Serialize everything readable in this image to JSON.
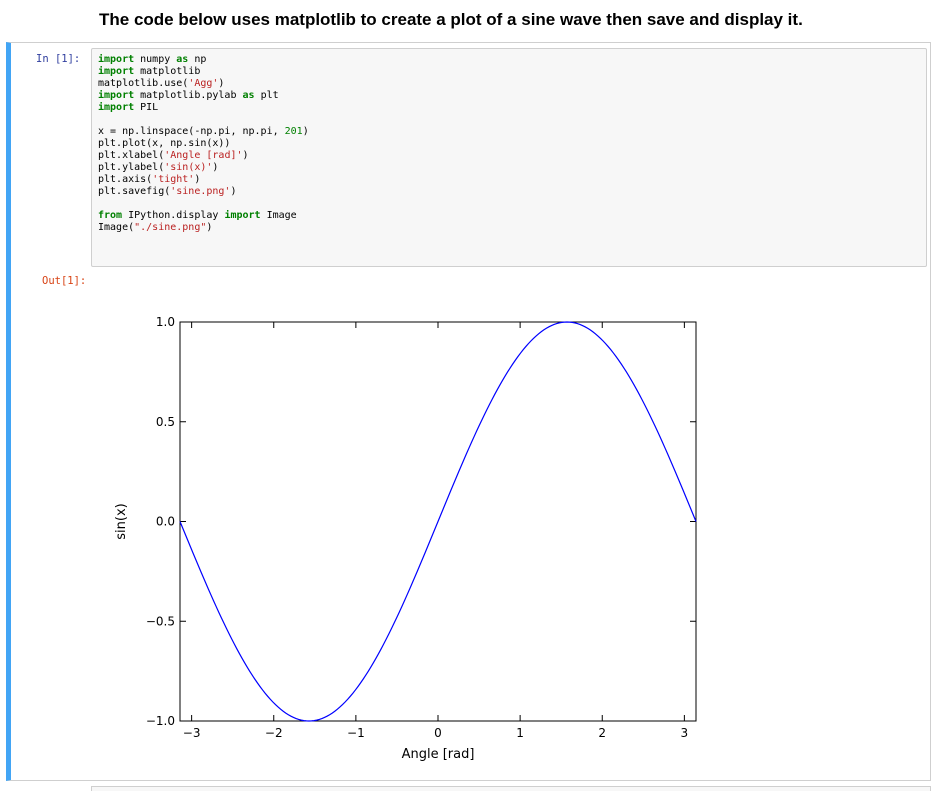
{
  "heading": "The code below uses matplotlib to create a plot of a sine wave then save and display it.",
  "cell": {
    "in_prompt": "In [1]:",
    "out_prompt": "Out[1]:",
    "code": {
      "l1a": "import",
      "l1b": " numpy ",
      "l1c": "as",
      "l1d": " np",
      "l2a": "import",
      "l2b": " matplotlib",
      "l3a": "matplotlib.use(",
      "l3b": "'Agg'",
      "l3c": ")",
      "l4a": "import",
      "l4b": " matplotlib.pylab ",
      "l4c": "as",
      "l4d": " plt",
      "l5a": "import",
      "l5b": " PIL",
      "l7a": "x = np.linspace(-np.pi, np.pi, ",
      "l7b": "201",
      "l7c": ")",
      "l8": "plt.plot(x, np.sin(x))",
      "l9a": "plt.xlabel(",
      "l9b": "'Angle [rad]'",
      "l9c": ")",
      "l10a": "plt.ylabel(",
      "l10b": "'sin(x)'",
      "l10c": ")",
      "l11a": "plt.axis(",
      "l11b": "'tight'",
      "l11c": ")",
      "l12a": "plt.savefig(",
      "l12b": "'sine.png'",
      "l12c": ")",
      "l14a": "from",
      "l14b": " IPython.display ",
      "l14c": "import",
      "l14d": " Image",
      "l15a": "Image(",
      "l15b": "\"./sine.png\"",
      "l15c": ")"
    }
  },
  "chart_data": {
    "type": "line",
    "xlabel": "Angle [rad]",
    "ylabel": "sin(x)",
    "xlim": [
      -3.14159,
      3.14159
    ],
    "ylim": [
      -1.0,
      1.0
    ],
    "x_ticks": [
      -3,
      -2,
      -1,
      0,
      1,
      2,
      3
    ],
    "x_tick_labels": [
      "−3",
      "−2",
      "−1",
      "0",
      "1",
      "2",
      "3"
    ],
    "y_ticks": [
      1.0,
      0.5,
      0.0,
      -0.5,
      -1.0
    ],
    "y_tick_labels": [
      "1.0",
      "0.5",
      "0.0",
      "−0.5",
      "−1.0"
    ],
    "grid": false,
    "series": [
      {
        "function": "y = sin(x)",
        "x": [
          -3.1416,
          -2.7489,
          -2.3562,
          -1.9635,
          -1.5708,
          -1.1781,
          -0.7854,
          -0.3927,
          0.0,
          0.3927,
          0.7854,
          1.1781,
          1.5708,
          1.9635,
          2.3562,
          2.7489,
          3.1416
        ],
        "y": [
          0.0,
          -0.3827,
          -0.7071,
          -0.9239,
          -1.0,
          -0.9239,
          -0.7071,
          -0.3827,
          0.0,
          0.3827,
          0.7071,
          0.9239,
          1.0,
          0.9239,
          0.7071,
          0.3827,
          0.0
        ],
        "samples": 201,
        "color": "#0000ff"
      }
    ]
  }
}
